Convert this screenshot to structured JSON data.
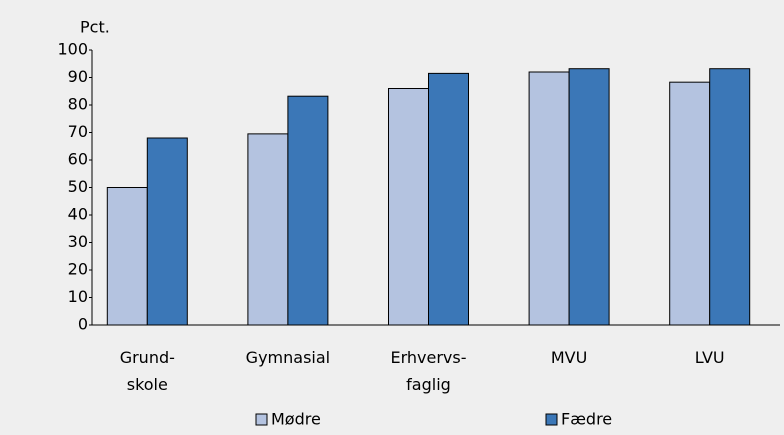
{
  "chart_data": {
    "type": "bar",
    "y_label": "Pct.",
    "categories": [
      "Grund-\nskole",
      "Gymnasial",
      "Erhvervs-\nfaglig",
      "MVU",
      "LVU"
    ],
    "series": [
      {
        "name": "Mødre",
        "color": "#b4c3e0",
        "values": [
          50,
          69.5,
          86,
          92,
          88.3
        ]
      },
      {
        "name": "Fædre",
        "color": "#3b77b7",
        "values": [
          68,
          83.2,
          91.5,
          93.2,
          93.2
        ]
      }
    ],
    "ylim": [
      0,
      100
    ],
    "yticks": [
      0,
      10,
      20,
      30,
      40,
      50,
      60,
      70,
      80,
      90,
      100
    ],
    "grid": false,
    "legend": "bottom"
  }
}
